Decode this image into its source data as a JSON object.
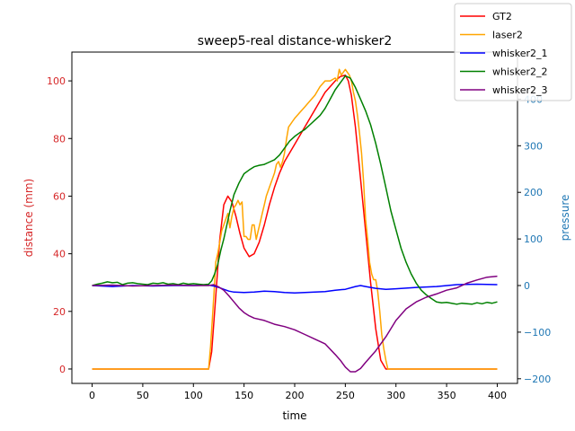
{
  "chart_data": {
    "type": "line",
    "title": "sweep5-real distance-whisker2",
    "xlabel": "time",
    "ylabel_left": "distance (mm)",
    "ylabel_right": "pressure",
    "xlim": [
      -20,
      420
    ],
    "ylim_left": [
      -5,
      110
    ],
    "ylim_right": [
      -210,
      501
    ],
    "xticks": [
      0,
      50,
      100,
      150,
      200,
      250,
      300,
      350,
      400
    ],
    "yticks_left": [
      0,
      20,
      40,
      60,
      80,
      100
    ],
    "yticks_right": [
      -200,
      -100,
      0,
      100,
      200,
      300,
      400
    ],
    "left_axis_color": "#d62728",
    "right_axis_color": "#1f77b4",
    "legend_position": "upper-right",
    "series": [
      {
        "name": "GT2",
        "color": "#ff0000",
        "axis": "left",
        "x": [
          0,
          115,
          118,
          122,
          126,
          130,
          134,
          138,
          142,
          146,
          150,
          155,
          160,
          165,
          170,
          175,
          180,
          185,
          190,
          195,
          200,
          210,
          220,
          230,
          240,
          245,
          250,
          253,
          256,
          260,
          265,
          270,
          275,
          280,
          285,
          290,
          300,
          350,
          400
        ],
        "y": [
          0,
          0,
          6,
          25,
          45,
          57,
          60,
          58,
          53,
          47,
          42,
          39,
          40,
          44,
          50,
          57,
          63,
          68,
          72,
          75,
          78,
          84,
          90,
          96,
          100,
          101.5,
          102,
          100,
          95,
          84,
          66,
          48,
          30,
          14,
          3,
          0,
          0,
          0,
          0
        ]
      },
      {
        "name": "laser2",
        "color": "#ffa500",
        "axis": "left",
        "x": [
          0,
          115,
          117,
          119,
          121,
          122,
          124,
          126,
          128,
          130,
          132,
          134,
          136,
          138,
          140,
          142,
          144,
          146,
          148,
          150,
          152,
          154,
          156,
          158,
          160,
          162,
          164,
          166,
          168,
          170,
          172,
          175,
          178,
          180,
          182,
          184,
          186,
          188,
          190,
          192,
          194,
          196,
          198,
          200,
          205,
          210,
          215,
          220,
          225,
          230,
          235,
          240,
          242,
          244,
          246,
          248,
          250,
          252,
          254,
          256,
          258,
          260,
          262,
          264,
          266,
          268,
          270,
          272,
          274,
          276,
          278,
          280,
          282,
          284,
          286,
          288,
          290,
          292,
          294,
          296,
          300,
          350,
          400
        ],
        "y": [
          0,
          0,
          8,
          19,
          30,
          37,
          40,
          44,
          48,
          50,
          52,
          54,
          49,
          53,
          56,
          57,
          58.5,
          57,
          58,
          46,
          46,
          45,
          45,
          50,
          50,
          45,
          48,
          51,
          54,
          57,
          60,
          63,
          66,
          68,
          71,
          72,
          70,
          72,
          75,
          80,
          84,
          85,
          86,
          87,
          89,
          91,
          93,
          95,
          98,
          100,
          100,
          101,
          100,
          104,
          102,
          103,
          104,
          103,
          102,
          100,
          96,
          93,
          88,
          82,
          75,
          65,
          52,
          45,
          37,
          33,
          31,
          31,
          27,
          20,
          12,
          7,
          3,
          0,
          0,
          0,
          0,
          0,
          0
        ]
      },
      {
        "name": "whisker2_1",
        "color": "#0000ff",
        "axis": "right",
        "x": [
          0,
          20,
          40,
          60,
          80,
          100,
          115,
          120,
          125,
          130,
          135,
          140,
          150,
          160,
          170,
          180,
          190,
          200,
          210,
          220,
          230,
          240,
          250,
          260,
          265,
          270,
          280,
          290,
          300,
          320,
          340,
          360,
          380,
          400
        ],
        "y": [
          0,
          -2,
          0,
          -1,
          0,
          0,
          1,
          -1,
          -4,
          -8,
          -12,
          -14,
          -15,
          -14,
          -12,
          -13,
          -15,
          -16,
          -15,
          -14,
          -13,
          -10,
          -8,
          -2,
          0,
          -2,
          -6,
          -8,
          -7,
          -4,
          -2,
          2,
          3,
          2
        ]
      },
      {
        "name": "whisker2_2",
        "color": "#008000",
        "axis": "right",
        "x": [
          0,
          5,
          10,
          15,
          20,
          25,
          30,
          35,
          40,
          45,
          50,
          55,
          60,
          65,
          70,
          75,
          80,
          85,
          90,
          95,
          100,
          105,
          110,
          115,
          118,
          121,
          124,
          127,
          130,
          133,
          136,
          140,
          145,
          150,
          155,
          160,
          165,
          170,
          175,
          180,
          185,
          190,
          195,
          200,
          205,
          210,
          215,
          220,
          225,
          230,
          235,
          240,
          245,
          250,
          255,
          260,
          265,
          270,
          275,
          280,
          285,
          290,
          295,
          300,
          305,
          310,
          315,
          320,
          325,
          330,
          335,
          340,
          345,
          350,
          355,
          360,
          365,
          370,
          375,
          380,
          385,
          390,
          395,
          400
        ],
        "y": [
          0,
          3,
          5,
          8,
          6,
          7,
          2,
          5,
          6,
          4,
          3,
          2,
          5,
          4,
          6,
          3,
          4,
          2,
          5,
          3,
          4,
          3,
          2,
          3,
          10,
          25,
          45,
          75,
          100,
          130,
          160,
          195,
          220,
          240,
          248,
          255,
          258,
          260,
          265,
          270,
          280,
          295,
          310,
          320,
          328,
          335,
          345,
          355,
          365,
          380,
          400,
          420,
          435,
          450,
          445,
          425,
          400,
          375,
          345,
          305,
          260,
          210,
          160,
          120,
          80,
          50,
          25,
          5,
          -10,
          -20,
          -28,
          -35,
          -37,
          -36,
          -38,
          -40,
          -38,
          -39,
          -40,
          -37,
          -39,
          -36,
          -38,
          -35
        ]
      },
      {
        "name": "whisker2_3",
        "color": "#800080",
        "axis": "right",
        "x": [
          0,
          20,
          40,
          60,
          80,
          100,
          115,
          120,
          125,
          130,
          135,
          140,
          145,
          150,
          155,
          160,
          170,
          180,
          190,
          200,
          210,
          220,
          230,
          240,
          245,
          250,
          255,
          260,
          265,
          270,
          280,
          290,
          300,
          310,
          320,
          330,
          340,
          350,
          360,
          370,
          380,
          390,
          400
        ],
        "y": [
          0,
          1,
          -1,
          0,
          1,
          0,
          0,
          2,
          -3,
          -10,
          -22,
          -35,
          -48,
          -58,
          -65,
          -70,
          -75,
          -83,
          -88,
          -95,
          -105,
          -115,
          -125,
          -148,
          -160,
          -175,
          -185,
          -185,
          -178,
          -165,
          -140,
          -110,
          -75,
          -50,
          -35,
          -25,
          -18,
          -10,
          -5,
          5,
          12,
          18,
          20
        ]
      }
    ]
  }
}
